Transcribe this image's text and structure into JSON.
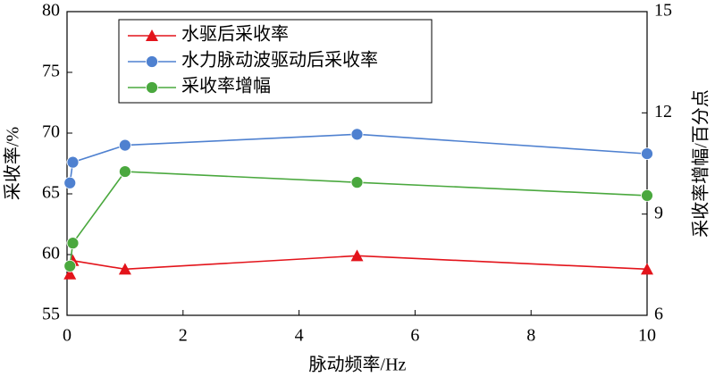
{
  "chart_data": {
    "type": "line",
    "x_label": "脉动频率/Hz",
    "y_label": "采收率/%",
    "y2_label": "采收率增幅/百分点",
    "x": [
      0.05,
      0.1,
      1,
      5,
      10
    ],
    "series": [
      {
        "name": "水驱后采收率",
        "color": "#e3141b",
        "marker": "triangle",
        "values": [
          58.4,
          59.5,
          58.8,
          59.9,
          58.8
        ]
      },
      {
        "name": "水力脉动波驱动后采收率",
        "color": "#4f81d0",
        "marker": "circle",
        "values": [
          65.9,
          67.6,
          69.0,
          69.9,
          68.3
        ]
      },
      {
        "name": "采收率增幅",
        "color": "#4aa83e",
        "marker": "circle",
        "axis": "y2",
        "values": [
          7.46,
          8.14,
          10.26,
          9.94,
          9.55
        ]
      }
    ],
    "xlim": [
      0,
      10
    ],
    "xticks": [
      0,
      2,
      4,
      6,
      8,
      10
    ],
    "ylim": [
      55,
      80
    ],
    "yticks": [
      55,
      60,
      65,
      70,
      75,
      80
    ],
    "y2lim": [
      6,
      15
    ],
    "y2ticks": [
      6,
      9,
      12,
      15
    ],
    "legend": "upper left"
  }
}
